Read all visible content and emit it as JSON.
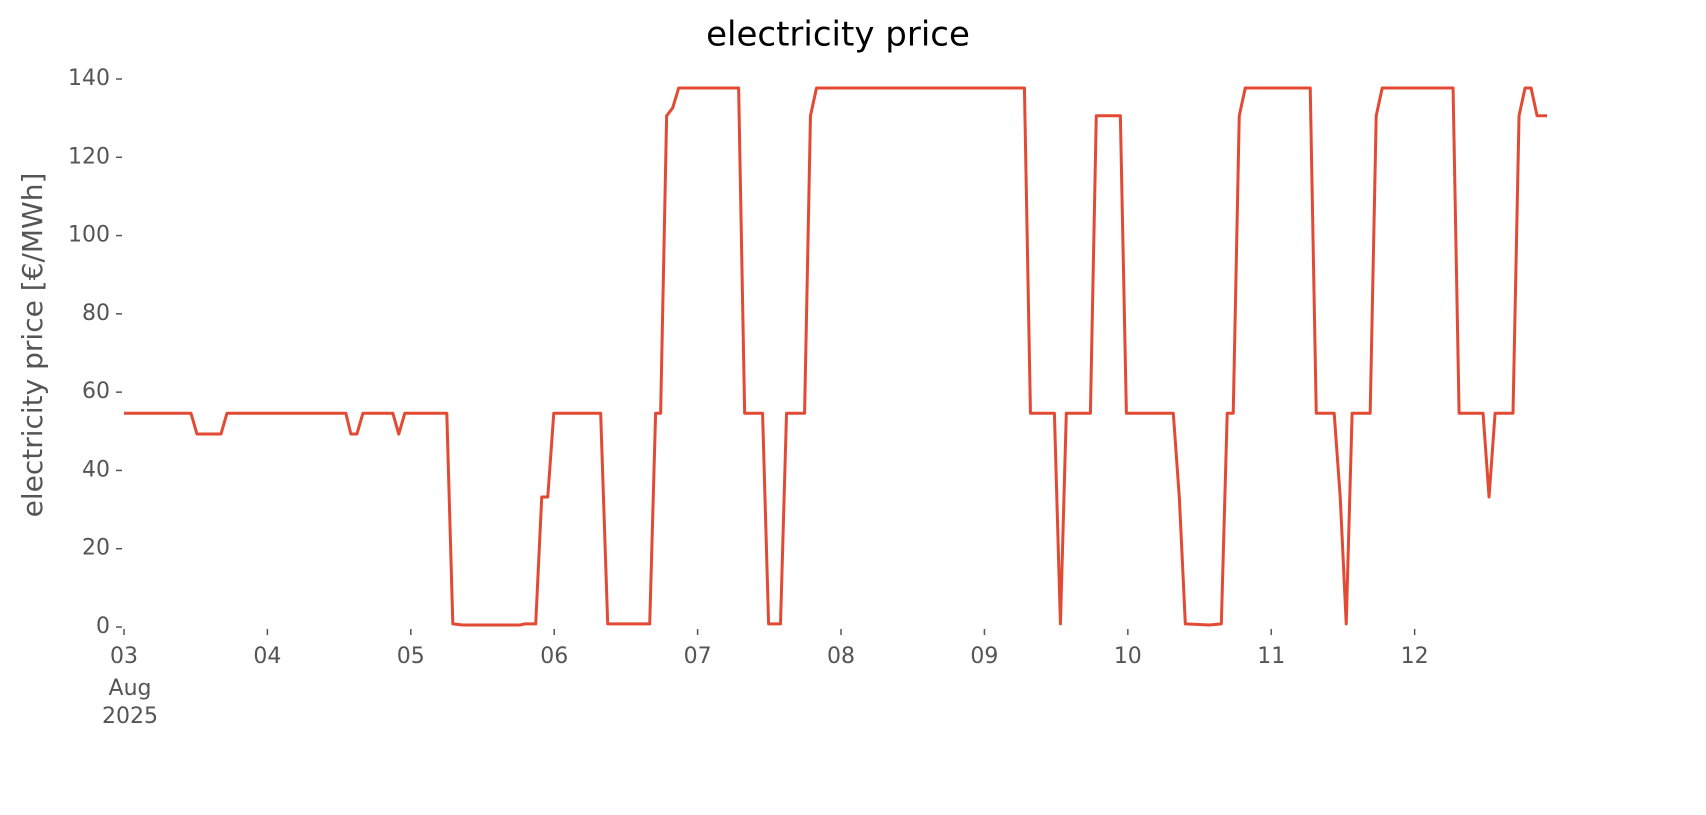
{
  "chart_data": {
    "type": "line",
    "title": "electricity price",
    "ylabel": "electricity price [€/MWh]",
    "x": [
      3.0,
      3.467,
      3.509,
      3.676,
      3.718,
      4.547,
      4.582,
      4.624,
      4.666,
      4.875,
      4.916,
      4.958,
      5.251,
      5.293,
      5.363,
      5.76,
      5.795,
      5.871,
      5.913,
      5.955,
      5.997,
      6.324,
      6.373,
      6.666,
      6.707,
      6.742,
      6.784,
      6.826,
      6.868,
      7.286,
      7.328,
      7.453,
      7.495,
      7.578,
      7.62,
      7.746,
      7.787,
      7.829,
      9.279,
      9.321,
      9.488,
      9.53,
      9.571,
      9.739,
      9.78,
      9.948,
      9.99,
      10.317,
      10.359,
      10.401,
      10.568,
      10.652,
      10.693,
      10.735,
      10.777,
      10.819,
      11.272,
      11.314,
      11.439,
      11.481,
      11.523,
      11.564,
      11.69,
      11.732,
      11.774,
      12.268,
      12.31,
      12.477,
      12.519,
      12.561,
      12.686,
      12.728,
      12.77,
      12.812,
      12.854,
      12.923
    ],
    "series": [
      {
        "name": "electricity price",
        "color": "#e24a33",
        "values": [
          54.6,
          54.6,
          49.3,
          49.3,
          54.6,
          54.6,
          49.3,
          49.3,
          54.6,
          54.6,
          49.3,
          54.6,
          54.6,
          0.8,
          0.5,
          0.5,
          0.8,
          0.8,
          33.2,
          33.2,
          54.6,
          54.6,
          0.8,
          0.8,
          54.6,
          54.6,
          130.6,
          132.6,
          137.7,
          137.7,
          54.6,
          54.6,
          0.8,
          0.8,
          54.6,
          54.6,
          130.6,
          137.7,
          137.7,
          54.6,
          54.6,
          0.8,
          54.6,
          54.6,
          130.6,
          130.6,
          54.6,
          54.6,
          33.2,
          0.8,
          0.5,
          0.8,
          54.6,
          54.6,
          130.6,
          137.7,
          137.7,
          54.6,
          54.6,
          33.2,
          0.8,
          54.6,
          54.6,
          130.6,
          137.7,
          137.7,
          54.6,
          54.6,
          33.2,
          54.6,
          54.6,
          130.6,
          137.7,
          137.7,
          130.6,
          130.6
        ]
      }
    ],
    "xlim": [
      3,
      12.93
    ],
    "xticks": [
      {
        "value": 3,
        "label": "03"
      },
      {
        "value": 4,
        "label": "04"
      },
      {
        "value": 5,
        "label": "05"
      },
      {
        "value": 6,
        "label": "06"
      },
      {
        "value": 7,
        "label": "07"
      },
      {
        "value": 8,
        "label": "08"
      },
      {
        "value": 9,
        "label": "09"
      },
      10,
      11,
      12
    ],
    "xtick_sublabels": [
      "Aug",
      "2025"
    ],
    "ylim": [
      0,
      140
    ],
    "yticks": [
      0,
      20,
      40,
      60,
      80,
      100,
      120,
      140
    ],
    "grid": false
  }
}
